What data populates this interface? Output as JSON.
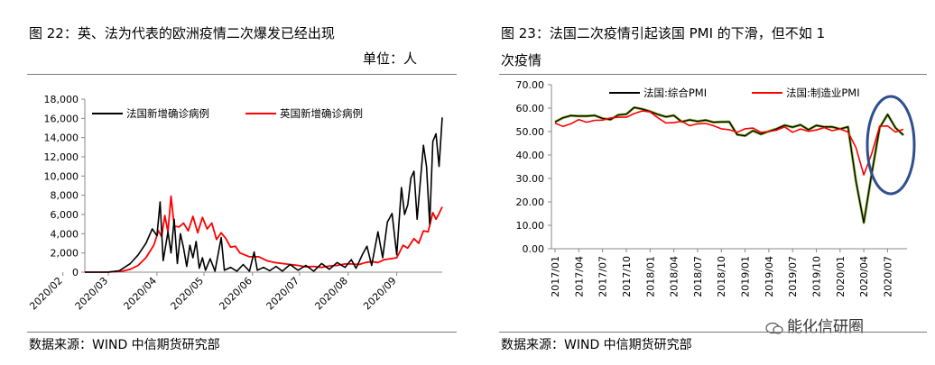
{
  "left": {
    "title": "图 22：英、法为代表的欧洲疫情二次爆发已经出现",
    "unit": "单位：人",
    "source": "数据来源：WIND 中信期货研究部"
  },
  "right": {
    "title_line1": "图 23：法国二次疫情引起该国 PMI 的下滑，但不如 1",
    "title_line2": "次疫情",
    "source": "数据来源：WIND 中信期货研究部"
  },
  "watermark": "能化信研圈",
  "colors": {
    "france": "#000000",
    "uk": "#ff0000",
    "composite": "#000000",
    "manufacturing": "#ff0000",
    "highlight": "#2f4f8f",
    "composite_under": "#8cb43c"
  },
  "chart_data": [
    {
      "type": "line",
      "ylim": [
        0,
        18000
      ],
      "yticks": [
        "0",
        "2,000",
        "4,000",
        "6,000",
        "8,000",
        "10,000",
        "12,000",
        "14,000",
        "16,000",
        "18,000"
      ],
      "xticks": [
        "2020/02",
        "2020/03",
        "2020/04",
        "2020/05",
        "2020/06",
        "2020/07",
        "2020/08",
        "2020/09"
      ],
      "x_start": "2020-02-15",
      "x_end": "2020-09-30",
      "series": [
        {
          "name": "法国新增确诊病例",
          "points": [
            [
              "2020-02-15",
              0
            ],
            [
              "2020-03-01",
              10
            ],
            [
              "2020-03-08",
              150
            ],
            [
              "2020-03-15",
              900
            ],
            [
              "2020-03-20",
              1800
            ],
            [
              "2020-03-25",
              3000
            ],
            [
              "2020-03-29",
              4500
            ],
            [
              "2020-04-01",
              3800
            ],
            [
              "2020-04-03",
              7300
            ],
            [
              "2020-04-05",
              1200
            ],
            [
              "2020-04-08",
              4200
            ],
            [
              "2020-04-10",
              2000
            ],
            [
              "2020-04-12",
              5500
            ],
            [
              "2020-04-14",
              900
            ],
            [
              "2020-04-16",
              4000
            ],
            [
              "2020-04-18",
              2500
            ],
            [
              "2020-04-20",
              600
            ],
            [
              "2020-04-22",
              2800
            ],
            [
              "2020-04-24",
              1500
            ],
            [
              "2020-04-26",
              3200
            ],
            [
              "2020-04-28",
              400
            ],
            [
              "2020-04-30",
              1500
            ],
            [
              "2020-05-02",
              200
            ],
            [
              "2020-05-05",
              1400
            ],
            [
              "2020-05-08",
              100
            ],
            [
              "2020-05-12",
              3600
            ],
            [
              "2020-05-14",
              200
            ],
            [
              "2020-05-18",
              500
            ],
            [
              "2020-05-22",
              100
            ],
            [
              "2020-05-26",
              800
            ],
            [
              "2020-05-30",
              100
            ],
            [
              "2020-06-02",
              2100
            ],
            [
              "2020-06-04",
              200
            ],
            [
              "2020-06-08",
              500
            ],
            [
              "2020-06-12",
              150
            ],
            [
              "2020-06-16",
              600
            ],
            [
              "2020-06-20",
              100
            ],
            [
              "2020-06-25",
              800
            ],
            [
              "2020-06-30",
              200
            ],
            [
              "2020-07-05",
              700
            ],
            [
              "2020-07-10",
              100
            ],
            [
              "2020-07-15",
              900
            ],
            [
              "2020-07-20",
              300
            ],
            [
              "2020-07-25",
              1000
            ],
            [
              "2020-07-30",
              500
            ],
            [
              "2020-08-03",
              1300
            ],
            [
              "2020-08-06",
              400
            ],
            [
              "2020-08-10",
              1800
            ],
            [
              "2020-08-13",
              2700
            ],
            [
              "2020-08-16",
              700
            ],
            [
              "2020-08-20",
              4200
            ],
            [
              "2020-08-23",
              1500
            ],
            [
              "2020-08-26",
              5200
            ],
            [
              "2020-08-29",
              6100
            ],
            [
              "2020-09-01",
              1800
            ],
            [
              "2020-09-04",
              8800
            ],
            [
              "2020-09-06",
              6000
            ],
            [
              "2020-09-08",
              7000
            ],
            [
              "2020-09-10",
              9800
            ],
            [
              "2020-09-12",
              10500
            ],
            [
              "2020-09-14",
              5500
            ],
            [
              "2020-09-16",
              9400
            ],
            [
              "2020-09-18",
              13200
            ],
            [
              "2020-09-20",
              11000
            ],
            [
              "2020-09-22",
              5000
            ],
            [
              "2020-09-24",
              13600
            ],
            [
              "2020-09-26",
              14400
            ],
            [
              "2020-09-28",
              11000
            ],
            [
              "2020-09-30",
              16100
            ]
          ]
        },
        {
          "name": "英国新增确诊病例",
          "points": [
            [
              "2020-02-15",
              0
            ],
            [
              "2020-03-01",
              10
            ],
            [
              "2020-03-10",
              100
            ],
            [
              "2020-03-15",
              300
            ],
            [
              "2020-03-20",
              700
            ],
            [
              "2020-03-25",
              1500
            ],
            [
              "2020-03-30",
              2800
            ],
            [
              "2020-04-02",
              4300
            ],
            [
              "2020-04-04",
              3700
            ],
            [
              "2020-04-06",
              5900
            ],
            [
              "2020-04-08",
              4200
            ],
            [
              "2020-04-10",
              7900
            ],
            [
              "2020-04-12",
              4800
            ],
            [
              "2020-04-15",
              4700
            ],
            [
              "2020-04-18",
              5100
            ],
            [
              "2020-04-21",
              4300
            ],
            [
              "2020-04-24",
              5800
            ],
            [
              "2020-04-27",
              4100
            ],
            [
              "2020-04-30",
              5700
            ],
            [
              "2020-05-03",
              4500
            ],
            [
              "2020-05-06",
              5100
            ],
            [
              "2020-05-09",
              3400
            ],
            [
              "2020-05-12",
              4100
            ],
            [
              "2020-05-15",
              3500
            ],
            [
              "2020-05-18",
              2600
            ],
            [
              "2020-05-21",
              2700
            ],
            [
              "2020-05-24",
              2000
            ],
            [
              "2020-05-27",
              1800
            ],
            [
              "2020-05-30",
              1600
            ],
            [
              "2020-06-05",
              1600
            ],
            [
              "2020-06-10",
              1200
            ],
            [
              "2020-06-15",
              1000
            ],
            [
              "2020-06-20",
              900
            ],
            [
              "2020-06-25",
              800
            ],
            [
              "2020-06-30",
              700
            ],
            [
              "2020-07-05",
              550
            ],
            [
              "2020-07-10",
              600
            ],
            [
              "2020-07-15",
              500
            ],
            [
              "2020-07-20",
              650
            ],
            [
              "2020-07-25",
              700
            ],
            [
              "2020-07-30",
              850
            ],
            [
              "2020-08-03",
              850
            ],
            [
              "2020-08-08",
              800
            ],
            [
              "2020-08-12",
              1000
            ],
            [
              "2020-08-16",
              1100
            ],
            [
              "2020-08-20",
              1000
            ],
            [
              "2020-08-24",
              1300
            ],
            [
              "2020-08-28",
              1400
            ],
            [
              "2020-09-01",
              1500
            ],
            [
              "2020-09-05",
              2800
            ],
            [
              "2020-09-08",
              2500
            ],
            [
              "2020-09-12",
              3500
            ],
            [
              "2020-09-15",
              3000
            ],
            [
              "2020-09-18",
              4300
            ],
            [
              "2020-09-21",
              4200
            ],
            [
              "2020-09-24",
              6200
            ],
            [
              "2020-09-26",
              5500
            ],
            [
              "2020-09-28",
              6100
            ],
            [
              "2020-09-30",
              6800
            ]
          ]
        }
      ]
    },
    {
      "type": "line",
      "ylim": [
        0,
        70
      ],
      "yticks": [
        "0.00",
        "10.00",
        "20.00",
        "30.00",
        "40.00",
        "50.00",
        "60.00",
        "70.00"
      ],
      "xticks": [
        "2017/01",
        "2017/04",
        "2017/07",
        "2017/10",
        "2018/01",
        "2018/04",
        "2018/07",
        "2018/10",
        "2019/01",
        "2019/04",
        "2019/07",
        "2019/10",
        "2020/01",
        "2020/04",
        "2020/07"
      ],
      "x_start": "2017/01",
      "series": [
        {
          "name": "法国:综合PMI",
          "values": [
            54.1,
            55.9,
            56.8,
            56.6,
            56.6,
            56.9,
            55.6,
            55.1,
            57.1,
            57.4,
            60.3,
            59.6,
            58.6,
            57.3,
            56.3,
            56.9,
            54.2,
            55.0,
            54.4,
            54.9,
            54.0,
            54.1,
            54.2,
            48.7,
            48.2,
            50.4,
            48.9,
            50.1,
            51.2,
            52.7,
            51.9,
            52.9,
            50.8,
            52.6,
            52.0,
            52.0,
            51.1,
            52.0,
            28.9,
            11.1,
            32.1,
            51.7,
            57.3,
            51.6,
            48.5
          ]
        },
        {
          "name": "法国:制造业PMI",
          "values": [
            53.6,
            52.2,
            53.3,
            55.1,
            54.0,
            54.8,
            54.9,
            55.8,
            56.1,
            56.1,
            57.7,
            58.8,
            58.4,
            55.9,
            53.7,
            53.8,
            54.4,
            52.5,
            53.3,
            53.5,
            52.5,
            51.2,
            50.8,
            49.7,
            51.2,
            51.5,
            49.7,
            50.0,
            50.6,
            52.0,
            49.7,
            51.1,
            50.1,
            50.7,
            51.7,
            50.4,
            51.1,
            49.8,
            43.2,
            31.5,
            40.6,
            52.3,
            52.4,
            49.8,
            51.0
          ]
        }
      ]
    }
  ]
}
